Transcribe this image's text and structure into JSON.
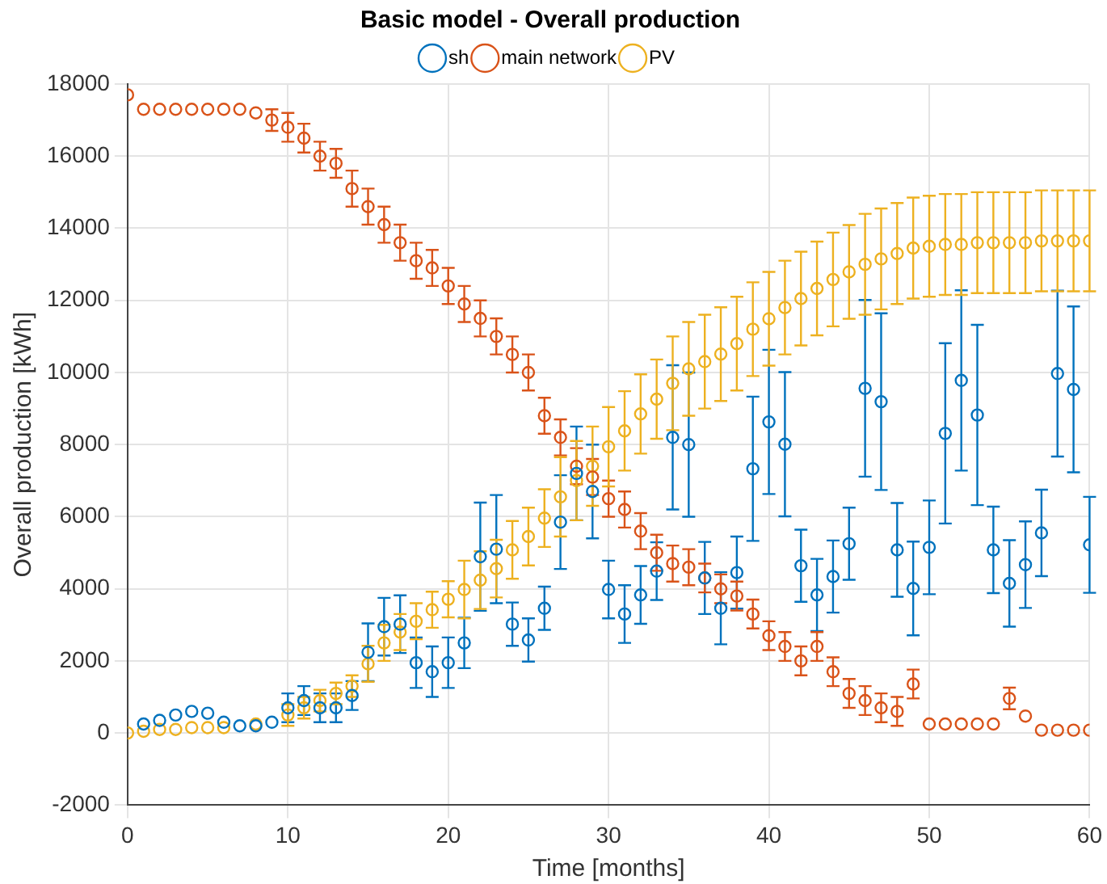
{
  "chart_data": {
    "type": "scatter",
    "title": "Basic model - Overall production",
    "xlabel": "Time [months]",
    "ylabel": "Overall production [kWh]",
    "x": [
      0,
      1,
      2,
      3,
      4,
      5,
      6,
      7,
      8,
      9,
      10,
      11,
      12,
      13,
      14,
      15,
      16,
      17,
      18,
      19,
      20,
      21,
      22,
      23,
      24,
      25,
      26,
      27,
      28,
      29,
      30,
      31,
      32,
      33,
      34,
      35,
      36,
      37,
      38,
      39,
      40,
      41,
      42,
      43,
      44,
      45,
      46,
      47,
      48,
      49,
      50,
      51,
      52,
      53,
      54,
      55,
      56,
      57,
      58,
      59,
      60
    ],
    "series": [
      {
        "name": "sh",
        "color": "#0072bd",
        "values": [
          null,
          250,
          350,
          500,
          600,
          550,
          300,
          200,
          200,
          300,
          700,
          900,
          700,
          700,
          1040,
          2240,
          2950,
          3020,
          1950,
          1700,
          1950,
          2500,
          4890,
          5100,
          3020,
          2580,
          3460,
          5850,
          7200,
          6700,
          3980,
          3300,
          3830,
          4490,
          8200,
          8000,
          4300,
          3460,
          4450,
          7330,
          8630,
          8010,
          4640,
          3830,
          4340,
          5250,
          9560,
          9190,
          5080,
          4010,
          5150,
          8310,
          9780,
          8820,
          5080,
          4150,
          4670,
          5550,
          9970,
          9530,
          5220
        ],
        "errors": [
          null,
          null,
          null,
          null,
          null,
          null,
          null,
          null,
          null,
          null,
          400,
          400,
          400,
          400,
          400,
          800,
          800,
          800,
          700,
          700,
          700,
          700,
          1500,
          1500,
          600,
          600,
          600,
          1300,
          1300,
          1300,
          800,
          800,
          800,
          800,
          2000,
          2000,
          1000,
          1000,
          1000,
          2000,
          2000,
          2000,
          1000,
          1000,
          1000,
          1000,
          2450,
          2450,
          1300,
          1300,
          1300,
          2500,
          2500,
          2500,
          1200,
          1200,
          1200,
          1200,
          2300,
          2300,
          1330
        ]
      },
      {
        "name": "main network",
        "color": "#d95319",
        "values": [
          17700,
          17300,
          17300,
          17300,
          17300,
          17300,
          17300,
          17300,
          17200,
          17000,
          16800,
          16500,
          16000,
          15800,
          15100,
          14600,
          14100,
          13600,
          13100,
          12900,
          12400,
          11900,
          11500,
          11000,
          10500,
          10000,
          8800,
          8200,
          7400,
          7100,
          6500,
          6200,
          5600,
          5000,
          4700,
          4600,
          4300,
          4000,
          3800,
          3300,
          2700,
          2400,
          2000,
          2400,
          1700,
          1100,
          900,
          700,
          600,
          1360,
          250,
          250,
          250,
          250,
          250,
          960,
          470,
          80,
          80,
          80,
          80
        ],
        "errors": [
          null,
          null,
          null,
          null,
          null,
          null,
          null,
          null,
          null,
          300,
          400,
          400,
          400,
          400,
          500,
          500,
          500,
          500,
          500,
          500,
          500,
          500,
          500,
          500,
          500,
          500,
          500,
          500,
          500,
          500,
          500,
          500,
          500,
          500,
          500,
          500,
          400,
          400,
          400,
          400,
          400,
          400,
          400,
          400,
          400,
          400,
          400,
          400,
          400,
          400,
          null,
          null,
          null,
          null,
          null,
          300,
          null,
          null,
          null,
          null,
          null
        ]
      },
      {
        "name": "PV",
        "color": "#edb120",
        "values": [
          0,
          50,
          100,
          100,
          150,
          150,
          150,
          null,
          250,
          null,
          500,
          700,
          900,
          1100,
          1300,
          1920,
          2500,
          2800,
          3100,
          3420,
          3710,
          3980,
          4240,
          4560,
          5080,
          5450,
          5960,
          6550,
          7000,
          7400,
          7940,
          8380,
          8850,
          9260,
          9700,
          10100,
          10300,
          10510,
          10800,
          11200,
          11490,
          11800,
          12050,
          12330,
          12580,
          12790,
          13000,
          13150,
          13300,
          13450,
          13500,
          13550,
          13550,
          13600,
          13600,
          13600,
          13600,
          13650,
          13650,
          13650,
          13650
        ],
        "errors": [
          null,
          null,
          null,
          null,
          null,
          null,
          null,
          null,
          null,
          null,
          300,
          300,
          300,
          300,
          300,
          500,
          500,
          500,
          500,
          500,
          500,
          800,
          800,
          800,
          800,
          800,
          800,
          1100,
          1100,
          1100,
          1100,
          1100,
          1100,
          1100,
          1300,
          1300,
          1300,
          1300,
          1300,
          1300,
          1300,
          1300,
          1300,
          1300,
          1300,
          1300,
          1400,
          1400,
          1400,
          1400,
          1400,
          1400,
          1400,
          1400,
          1400,
          1400,
          1400,
          1400,
          1400,
          1400,
          1400
        ]
      }
    ],
    "xlim": [
      0,
      60
    ],
    "xticks": [
      0,
      10,
      20,
      30,
      40,
      50,
      60
    ],
    "ylim": [
      -2000,
      18000
    ],
    "yticks": [
      -2000,
      0,
      2000,
      4000,
      6000,
      8000,
      10000,
      12000,
      14000,
      16000,
      18000
    ],
    "grid": true,
    "legend": "top",
    "marker": "circle"
  }
}
